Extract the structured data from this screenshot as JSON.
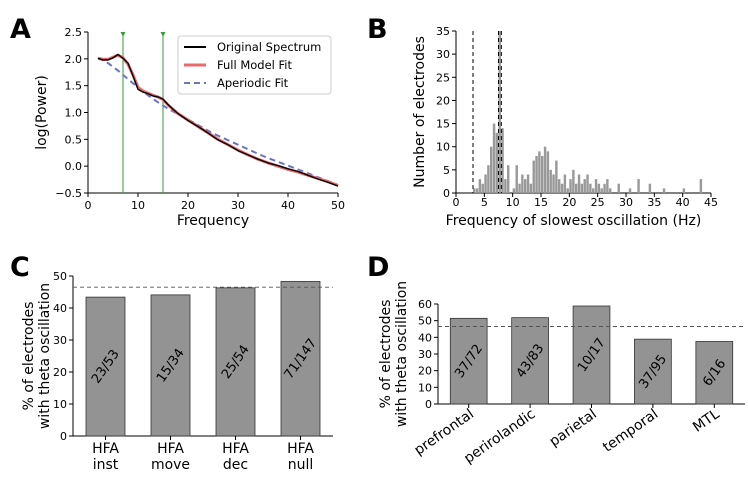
{
  "panel_letters": [
    "A",
    "B",
    "C",
    "D"
  ],
  "chart_data": [
    {
      "panel": "A",
      "type": "line",
      "xlabel": "Frequency",
      "ylabel": "log(Power)",
      "xlim": [
        0,
        50
      ],
      "ylim": [
        -0.5,
        2.5
      ],
      "xticks": [
        "0",
        "10",
        "20",
        "30",
        "40",
        "50"
      ],
      "yticks": [
        "−0.5",
        "0.0",
        "0.5",
        "1.0",
        "1.5",
        "2.0",
        "2.5"
      ],
      "legend_position": "top-right",
      "peak_markers_x": [
        7,
        15
      ],
      "series": [
        {
          "name": "Original Spectrum",
          "color": "#000000",
          "x": [
            2,
            3,
            4,
            5,
            6,
            7,
            8,
            9,
            10,
            11,
            12,
            13,
            14,
            15,
            16,
            17,
            18,
            20,
            22,
            24,
            26,
            28,
            30,
            32,
            34,
            36,
            38,
            40,
            42,
            44,
            46,
            48,
            50
          ],
          "y": [
            2.01,
            1.98,
            1.98,
            2.02,
            2.08,
            2.01,
            1.92,
            1.68,
            1.43,
            1.38,
            1.35,
            1.31,
            1.29,
            1.25,
            1.15,
            1.06,
            0.98,
            0.85,
            0.74,
            0.62,
            0.49,
            0.4,
            0.29,
            0.21,
            0.13,
            0.06,
            0.01,
            -0.05,
            -0.1,
            -0.17,
            -0.24,
            -0.3,
            -0.37
          ]
        },
        {
          "name": "Full Model Fit",
          "color": "#e86a6a",
          "x": [
            2,
            3,
            4,
            5,
            6,
            7,
            8,
            9,
            10,
            11,
            12,
            13,
            14,
            15,
            16,
            17,
            18,
            20,
            22,
            24,
            26,
            28,
            30,
            32,
            34,
            36,
            38,
            40,
            42,
            44,
            46,
            48,
            50
          ],
          "y": [
            2.01,
            1.99,
            1.99,
            2.03,
            2.07,
            2.02,
            1.9,
            1.7,
            1.47,
            1.4,
            1.36,
            1.32,
            1.29,
            1.24,
            1.14,
            1.06,
            0.98,
            0.86,
            0.74,
            0.62,
            0.5,
            0.4,
            0.3,
            0.21,
            0.13,
            0.06,
            0.0,
            -0.06,
            -0.11,
            -0.17,
            -0.23,
            -0.29,
            -0.36
          ]
        },
        {
          "name": "Aperiodic Fit",
          "color": "#6b74c4",
          "dashed": true,
          "x": [
            2,
            4,
            6,
            8,
            10,
            12,
            14,
            16,
            18,
            20,
            25,
            30,
            35,
            40,
            45,
            50
          ],
          "y": [
            2.02,
            1.92,
            1.78,
            1.62,
            1.47,
            1.32,
            1.19,
            1.07,
            0.97,
            0.87,
            0.61,
            0.4,
            0.19,
            0.01,
            -0.17,
            -0.35
          ]
        }
      ]
    },
    {
      "panel": "B",
      "type": "bar",
      "xlabel": "Frequency of slowest oscillation (Hz)",
      "ylabel": "Number of electrodes",
      "xlim": [
        0,
        45
      ],
      "ylim": [
        0,
        35
      ],
      "xticks": [
        "0",
        "5",
        "10",
        "15",
        "20",
        "25",
        "30",
        "35",
        "40",
        "45"
      ],
      "yticks": [
        "0",
        "5",
        "10",
        "15",
        "20",
        "25",
        "30",
        "35"
      ],
      "bar_color": "#999999",
      "dashed_lines_x": [
        3,
        7.5,
        8
      ],
      "bins": [
        3,
        3.5,
        4,
        4.5,
        5,
        5.5,
        6,
        6.5,
        7,
        7.5,
        8,
        8.5,
        9,
        10,
        10.5,
        11,
        11.5,
        12,
        12.5,
        13,
        13.5,
        14,
        14.5,
        15,
        15.5,
        16,
        16.5,
        17,
        17.5,
        18,
        18.5,
        19,
        19.5,
        20,
        20.5,
        21,
        21.5,
        22,
        22.5,
        23,
        23.5,
        24,
        24.5,
        25,
        25.5,
        26,
        26.5,
        27,
        28.5,
        30.5,
        32,
        34,
        36.5,
        40,
        43
      ],
      "counts": [
        1,
        1,
        3,
        2,
        4,
        6,
        10,
        15,
        13,
        35,
        14,
        3,
        6,
        1,
        6,
        2,
        4,
        3,
        4,
        2,
        7,
        8,
        9,
        8,
        10,
        9,
        5,
        4,
        7,
        3,
        2,
        4,
        1,
        3,
        5,
        2,
        4,
        2,
        3,
        4,
        2,
        1,
        3,
        2,
        1,
        2,
        3,
        1,
        2,
        1,
        3,
        2,
        1,
        1,
        3
      ]
    },
    {
      "panel": "C",
      "type": "bar",
      "ylabel": "% of electrodes\nwith theta oscillation",
      "ylim": [
        0,
        50
      ],
      "yticks": [
        "0",
        "10",
        "20",
        "30",
        "40",
        "50"
      ],
      "bar_color": "#939393",
      "reference_line_y": 46.5,
      "categories": [
        "HFA\ninst",
        "HFA\nmove",
        "HFA\ndec",
        "HFA\nnull"
      ],
      "values": [
        43.4,
        44.1,
        46.3,
        48.3
      ],
      "data_labels": [
        "23/53",
        "15/34",
        "25/54",
        "71/147"
      ]
    },
    {
      "panel": "D",
      "type": "bar",
      "ylabel": "% of electrodes\nwith theta oscillation",
      "ylim": [
        0,
        60
      ],
      "yticks": [
        "0",
        "10",
        "20",
        "30",
        "40",
        "50",
        "60"
      ],
      "bar_color": "#939393",
      "reference_line_y": 46.5,
      "categories": [
        "prefrontal",
        "perirolandic",
        "parietal",
        "temporal",
        "MTL"
      ],
      "values": [
        51.4,
        51.8,
        58.8,
        38.9,
        37.5
      ],
      "data_labels": [
        "37/72",
        "43/83",
        "10/17",
        "37/95",
        "6/16"
      ]
    }
  ]
}
